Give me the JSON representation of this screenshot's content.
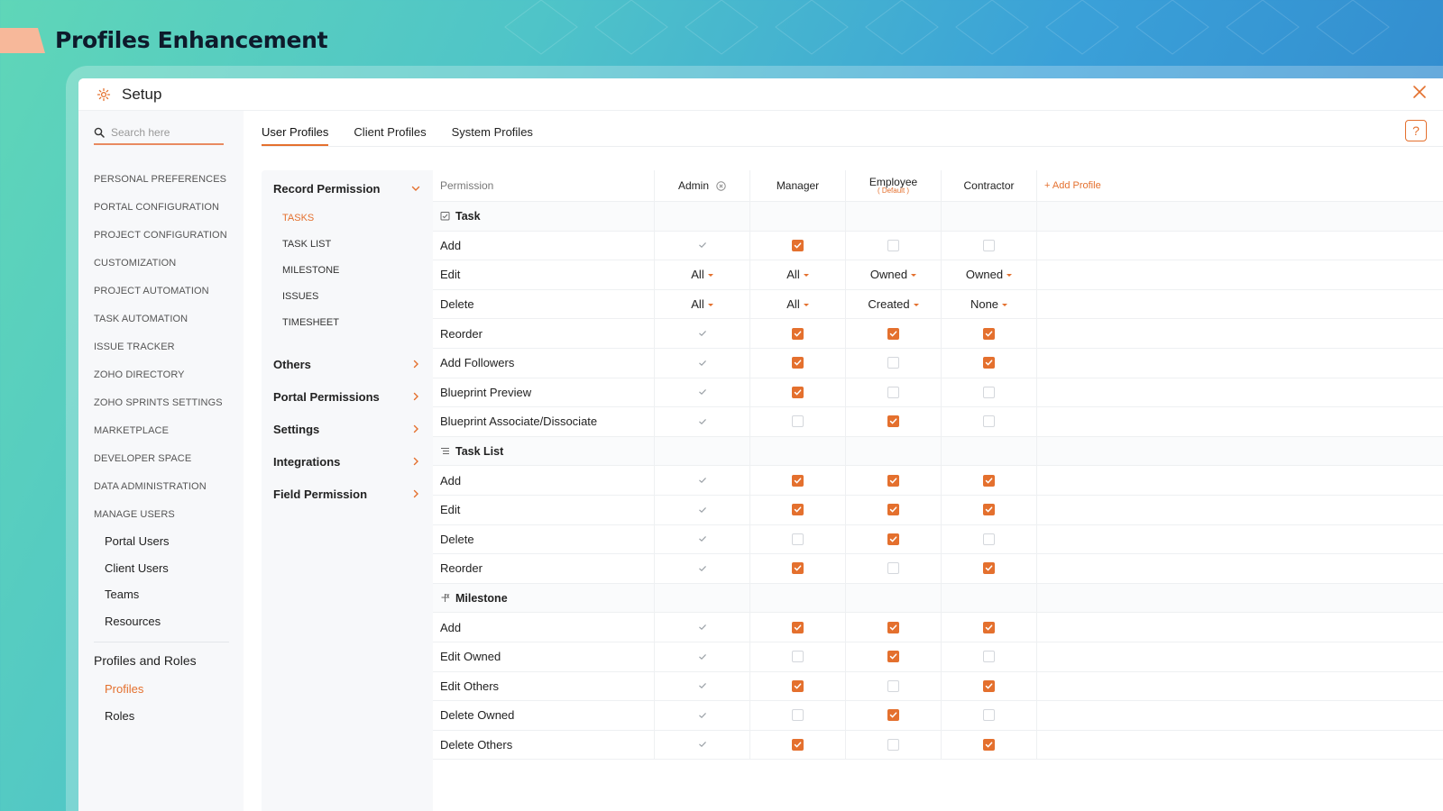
{
  "page": {
    "title": "Profiles Enhancement"
  },
  "window": {
    "title": "Setup",
    "help": "?"
  },
  "search": {
    "placeholder": "Search here"
  },
  "sidebar": {
    "items": [
      "Personal Preferences",
      "Portal Configuration",
      "Project Configuration",
      "Customization",
      "Project Automation",
      "Task Automation",
      "Issue Tracker",
      "Zoho Directory",
      "Zoho Sprints Settings",
      "Marketplace",
      "Developer Space",
      "Data Administration",
      "Manage Users"
    ],
    "manage_users": [
      "Portal Users",
      "Client Users",
      "Teams",
      "Resources"
    ],
    "profiles_heading": "Profiles and Roles",
    "profiles_sub": [
      {
        "label": "Profiles",
        "active": true
      },
      {
        "label": "Roles",
        "active": false
      }
    ]
  },
  "tabs": [
    {
      "label": "User Profiles",
      "active": true
    },
    {
      "label": "Client Profiles",
      "active": false
    },
    {
      "label": "System Profiles",
      "active": false
    }
  ],
  "perm_nav": {
    "record_permission": "Record Permission",
    "record_subs": [
      {
        "label": "TASKS",
        "active": true
      },
      {
        "label": "TASK LIST",
        "active": false
      },
      {
        "label": "MILESTONE",
        "active": false
      },
      {
        "label": "ISSUES",
        "active": false
      },
      {
        "label": "TIMESHEET",
        "active": false
      }
    ],
    "groups": [
      "Others",
      "Portal Permissions",
      "Settings",
      "Integrations",
      "Field Permission"
    ]
  },
  "grid": {
    "perm_header": "Permission",
    "roles": [
      {
        "name": "Admin",
        "sub": ""
      },
      {
        "name": "Manager",
        "sub": ""
      },
      {
        "name": "Employee",
        "sub": "( Default )"
      },
      {
        "name": "Contractor",
        "sub": ""
      }
    ],
    "add_profile": "+ Add Profile",
    "sections": [
      {
        "name": "Task",
        "icon": "task-icon",
        "rows": [
          {
            "label": "Add",
            "values": [
              "grey",
              "on",
              "off",
              "off"
            ]
          },
          {
            "label": "Edit",
            "values": [
              "All",
              "All",
              "Owned",
              "Owned"
            ]
          },
          {
            "label": "Delete",
            "values": [
              "All",
              "All",
              "Created",
              "None"
            ]
          },
          {
            "label": "Reorder",
            "values": [
              "grey",
              "on",
              "on",
              "on"
            ]
          },
          {
            "label": "Add Followers",
            "values": [
              "grey",
              "on",
              "off",
              "on"
            ]
          },
          {
            "label": "Blueprint Preview",
            "values": [
              "grey",
              "on",
              "off",
              "off"
            ]
          },
          {
            "label": "Blueprint Associate/Dissociate",
            "values": [
              "grey",
              "off",
              "on",
              "off"
            ]
          }
        ]
      },
      {
        "name": "Task List",
        "icon": "task-list-icon",
        "rows": [
          {
            "label": "Add",
            "values": [
              "grey",
              "on",
              "on",
              "on"
            ]
          },
          {
            "label": "Edit",
            "values": [
              "grey",
              "on",
              "on",
              "on"
            ]
          },
          {
            "label": "Delete",
            "values": [
              "grey",
              "off",
              "on",
              "off"
            ]
          },
          {
            "label": "Reorder",
            "values": [
              "grey",
              "on",
              "off",
              "on"
            ]
          }
        ]
      },
      {
        "name": "Milestone",
        "icon": "milestone-icon",
        "rows": [
          {
            "label": "Add",
            "values": [
              "grey",
              "on",
              "on",
              "on"
            ]
          },
          {
            "label": "Edit Owned",
            "values": [
              "grey",
              "off",
              "on",
              "off"
            ]
          },
          {
            "label": "Edit Others",
            "values": [
              "grey",
              "on",
              "off",
              "on"
            ]
          },
          {
            "label": "Delete Owned",
            "values": [
              "grey",
              "off",
              "on",
              "off"
            ]
          },
          {
            "label": "Delete Others",
            "values": [
              "grey",
              "on",
              "off",
              "on"
            ]
          }
        ]
      }
    ]
  },
  "colors": {
    "accent": "#e4702e",
    "bg_start": "#5fd6b8",
    "bg_end": "#2d7ec8"
  }
}
